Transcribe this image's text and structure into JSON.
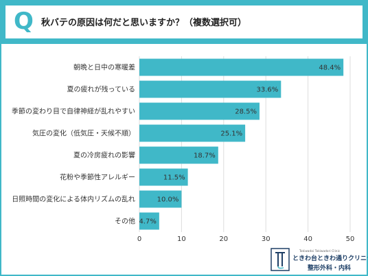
{
  "header": {
    "q_mark": "Q",
    "title": "秋バテの原因は何だと思いますか？（複数選択可）"
  },
  "chart_data": {
    "type": "bar",
    "orientation": "horizontal",
    "categories": [
      "朝晩と日中の寒暖差",
      "夏の疲れが残っている",
      "季節の変わり目で自律神経が乱れやすい",
      "気圧の変化（低気圧・天候不順）",
      "夏の冷房疲れの影響",
      "花粉や季節性アレルギー",
      "日照時間の変化による体内リズムの乱れ",
      "その他"
    ],
    "values": [
      48.4,
      33.6,
      28.5,
      25.1,
      18.7,
      11.5,
      10.0,
      4.7
    ],
    "value_labels": [
      "48.4%",
      "33.6%",
      "28.5%",
      "25.1%",
      "18.7%",
      "11.5%",
      "10.0%",
      "4.7%"
    ],
    "xlim": [
      0,
      50
    ],
    "xticks": [
      0,
      10,
      20,
      30,
      40,
      50
    ],
    "grid": true,
    "bar_color": "#40b8c8"
  },
  "footer": {
    "clinic_romaji": "Tokiwadai Tokiwadori Clinic",
    "clinic_name": "ときわ台ときわ通りクリニック",
    "clinic_dept": "整形外科・内科"
  },
  "colors": {
    "accent": "#40b8c8",
    "grid": "#dddddd",
    "logo": "#1e3f66"
  }
}
